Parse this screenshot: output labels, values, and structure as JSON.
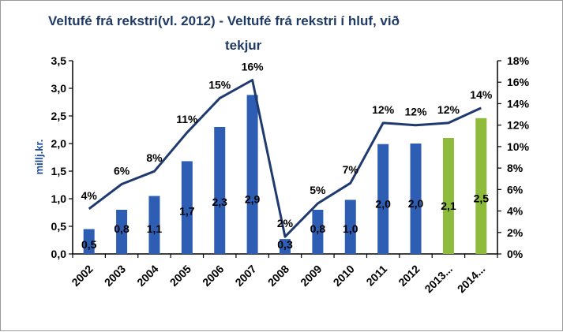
{
  "chart_data": {
    "type": "bar+line",
    "title": "Veltufé frá rekstri(vl. 2012) - Veltufé frá rekstri í hluf, við",
    "subtitle": "tekjur",
    "ylabel": "millj.kr.",
    "categories": [
      "2002",
      "2003",
      "2004",
      "2005",
      "2006",
      "2007",
      "2008",
      "2009",
      "2010",
      "2011",
      "2012",
      "2013...",
      "2014..."
    ],
    "bar_values": [
      0.45,
      0.8,
      1.05,
      1.68,
      2.3,
      2.88,
      0.27,
      0.8,
      0.98,
      1.99,
      2.0,
      2.1,
      2.46
    ],
    "bar_labels": [
      "0,5",
      "0,8",
      "1,1",
      "1,7",
      "2,3",
      "2,9",
      "0,3",
      "0,8",
      "1,0",
      "2,0",
      "2,0",
      "2,1",
      "2,5"
    ],
    "bar_colors": [
      "#2e5eb4",
      "#2e5eb4",
      "#2e5eb4",
      "#2e5eb4",
      "#2e5eb4",
      "#2e5eb4",
      "#2e5eb4",
      "#2e5eb4",
      "#2e5eb4",
      "#2e5eb4",
      "#2e5eb4",
      "#8fbb3c",
      "#8fbb3c"
    ],
    "line_values": [
      4.2,
      6.5,
      7.7,
      11.3,
      14.5,
      16.2,
      1.6,
      4.7,
      6.6,
      12.2,
      12.0,
      12.2,
      13.6
    ],
    "line_labels": [
      "4%",
      "6%",
      "8%",
      "11%",
      "15%",
      "16%",
      "2%",
      "5%",
      "7%",
      "12%",
      "12%",
      "12%",
      "14%"
    ],
    "line_color": "#1f3a6e",
    "y_left": {
      "min": 0,
      "max": 3.5,
      "ticks": [
        0,
        0.5,
        1,
        1.5,
        2,
        2.5,
        3,
        3.5
      ],
      "tick_labels": [
        "0,0",
        "0,5",
        "1,0",
        "1,5",
        "2,0",
        "2,5",
        "3,0",
        "3,5"
      ]
    },
    "y_right": {
      "min": 0,
      "max": 18,
      "ticks": [
        0,
        2,
        4,
        6,
        8,
        10,
        12,
        14,
        16,
        18
      ],
      "tick_labels": [
        "0%",
        "2%",
        "4%",
        "6%",
        "8%",
        "10%",
        "12%",
        "14%",
        "16%",
        "18%"
      ]
    },
    "grid": false,
    "legend": "none"
  }
}
